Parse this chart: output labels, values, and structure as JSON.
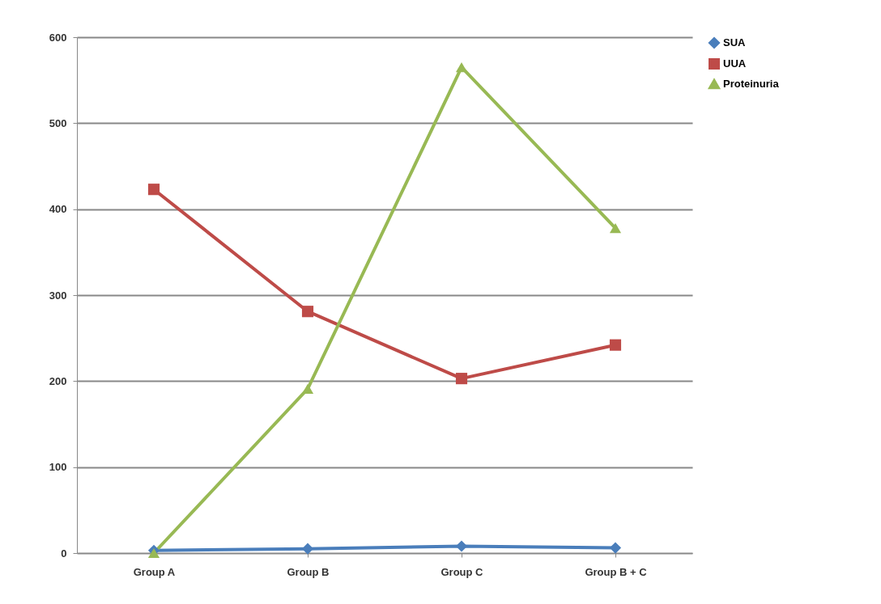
{
  "chart_data": {
    "type": "line",
    "categories": [
      "Group A",
      "Group B",
      "Group C",
      "Group B + C"
    ],
    "series": [
      {
        "name": "SUA",
        "color": "#4a7ebb",
        "marker": "diamond",
        "values": [
          3,
          5,
          8,
          6
        ]
      },
      {
        "name": "UUA",
        "color": "#be4b48",
        "marker": "square",
        "values": [
          423,
          281,
          203,
          242
        ]
      },
      {
        "name": "Proteinuria",
        "color": "#98b954",
        "marker": "triangle",
        "values": [
          0,
          191,
          565,
          378
        ]
      }
    ],
    "ylim": [
      0,
      600
    ],
    "yticks": [
      0,
      100,
      200,
      300,
      400,
      500,
      600
    ],
    "grid": "y",
    "legend": "right"
  }
}
